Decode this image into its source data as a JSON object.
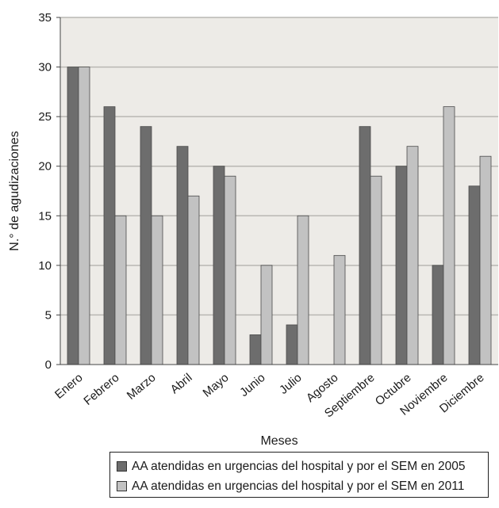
{
  "chart_data": {
    "type": "bar",
    "title": "",
    "xlabel": "Meses",
    "ylabel": "N.° de agudizaciones",
    "ylim": [
      0,
      35
    ],
    "yticks": [
      0,
      5,
      10,
      15,
      20,
      25,
      30,
      35
    ],
    "grid": true,
    "legend_position": "bottom",
    "categories": [
      "Enero",
      "Febrero",
      "Marzo",
      "Abril",
      "Mayo",
      "Junio",
      "Julio",
      "Agosto",
      "Septiembre",
      "Octubre",
      "Noviembre",
      "Diciembre"
    ],
    "series": [
      {
        "name": "AA atendidas en urgencias del hospital y por el SEM en 2005",
        "color": "#6d6d6d",
        "values": [
          30,
          26,
          24,
          22,
          20,
          3,
          4,
          0,
          24,
          20,
          10,
          18
        ]
      },
      {
        "name": "AA atendidas en urgencias del hospital y por el SEM en 2011",
        "color": "#c2c2c2",
        "values": [
          30,
          15,
          15,
          17,
          19,
          10,
          15,
          11,
          19,
          22,
          26,
          21
        ]
      }
    ]
  }
}
